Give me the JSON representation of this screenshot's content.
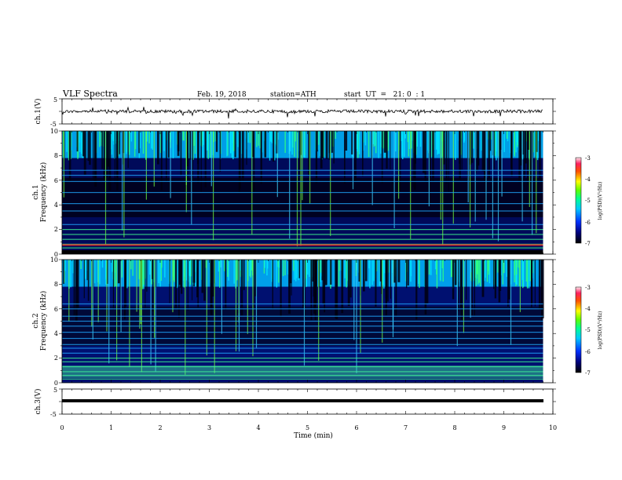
{
  "header": {
    "title": "VLF Spectra",
    "date": "Feb. 19, 2018",
    "station": "station=ATH",
    "start": "start  UT  =   21: 0  : 1"
  },
  "chart_data": {
    "type": "heatmap",
    "x": {
      "label": "Time (min)",
      "range": [
        0,
        10
      ],
      "ticks": [
        "0",
        "1",
        "2",
        "3",
        "4",
        "5",
        "6",
        "7",
        "8",
        "9",
        "10"
      ],
      "data_end": 9.8
    },
    "panels": [
      {
        "name": "ch1-waveform",
        "type": "line",
        "ylabel": "ch.1(V)",
        "ylim": [
          -5,
          5
        ],
        "ticks": [
          "5",
          "-5"
        ]
      },
      {
        "name": "ch1-spectrogram",
        "type": "heatmap",
        "ylabel_line1": "ch.1",
        "ylabel_line2": "Frequency (kHz)",
        "ylim": [
          0,
          10
        ],
        "ticks": [
          "0",
          "2",
          "4",
          "6",
          "8",
          "10"
        ],
        "colorbar": {
          "label": "log(PSD)(V²/Hz)",
          "range": [
            -7,
            -3
          ],
          "ticks": [
            "-3",
            "-4",
            "-5",
            "-6",
            "-7"
          ]
        }
      },
      {
        "name": "ch2-spectrogram",
        "type": "heatmap",
        "ylabel_line1": "ch.2",
        "ylabel_line2": "Frequency (kHz)",
        "ylim": [
          0,
          10
        ],
        "ticks": [
          "0",
          "2",
          "4",
          "6",
          "8",
          "10"
        ],
        "colorbar": {
          "label": "log(PSD)(V²/Hz)",
          "range": [
            -7,
            -3
          ],
          "ticks": [
            "-3",
            "-4",
            "-5",
            "-6",
            "-7"
          ]
        }
      },
      {
        "name": "ch3-waveform",
        "type": "line",
        "ylabel": "ch.3(V)",
        "ylim": [
          -5,
          5
        ],
        "ticks": [
          "5",
          "-5"
        ]
      }
    ]
  }
}
